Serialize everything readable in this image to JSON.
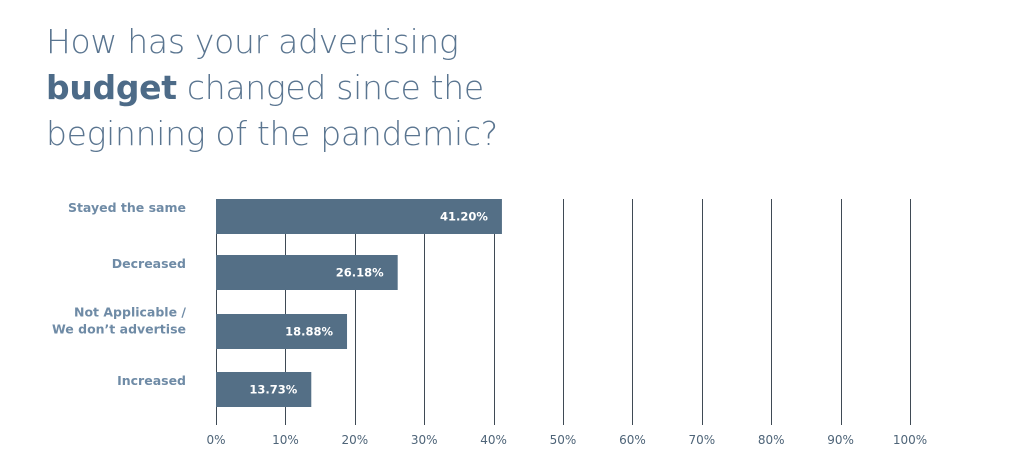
{
  "title": {
    "line1": "How has your advertising",
    "line2_bold": "budget",
    "line2_rest": " changed since the",
    "line3": "beginning of the pandemic?"
  },
  "colors": {
    "bar": "#546f86",
    "grid": "#3f4a55",
    "category_text": "#6f8ba6",
    "title_text": "#5a7590"
  },
  "chart_data": {
    "type": "bar",
    "orientation": "horizontal",
    "categories": [
      [
        "Stayed the same"
      ],
      [
        "Decreased"
      ],
      [
        "Not Applicable /",
        "We don’t advertise"
      ],
      [
        "Increased"
      ]
    ],
    "values": [
      41.2,
      26.18,
      18.88,
      13.73
    ],
    "data_labels": [
      "41.20%",
      "26.18%",
      "18.88%",
      "13.73%"
    ],
    "x_ticks": [
      "0%",
      "10%",
      "20%",
      "30%",
      "40%",
      "50%",
      "60%",
      "70%",
      "80%",
      "90%",
      "100%"
    ],
    "xlim": [
      0,
      100
    ],
    "grid": true,
    "legend": "none"
  }
}
